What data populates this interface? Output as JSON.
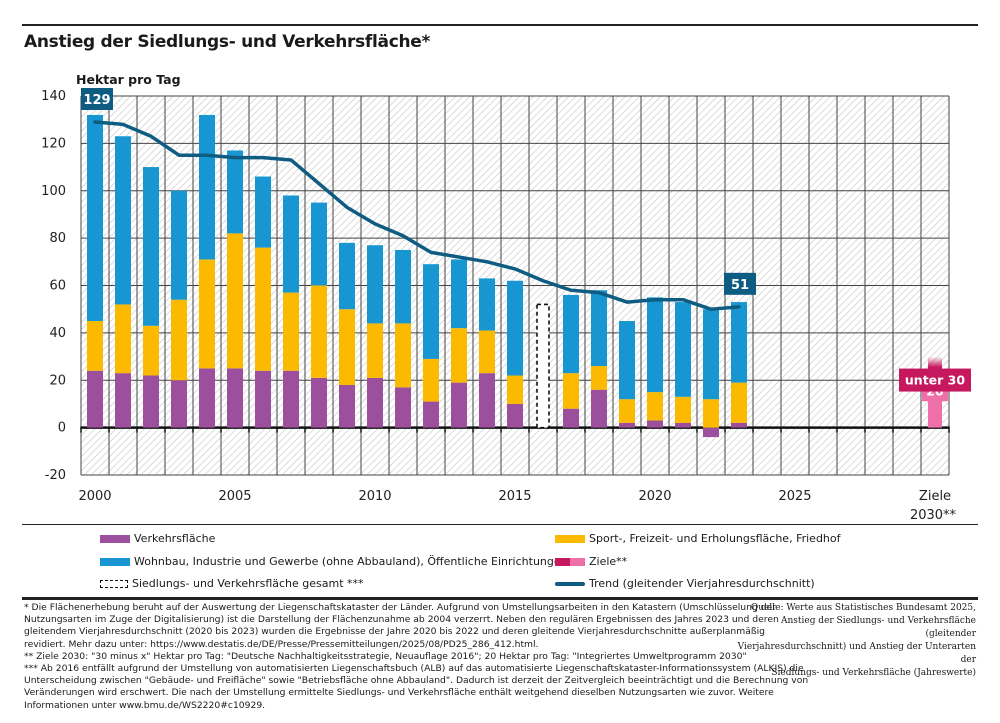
{
  "title": "Anstieg der Siedlungs- und Verkehrsfläche*",
  "chart_data": {
    "type": "bar",
    "stacked": true,
    "title": "Anstieg der Siedlungs- und Verkehrsfläche*",
    "ylabel": "Hektar pro Tag",
    "xlabel": "",
    "ylim": [
      -20,
      140
    ],
    "yticks": [
      -20,
      0,
      20,
      40,
      60,
      80,
      100,
      120,
      140
    ],
    "grid": true,
    "categories": [
      "2000",
      "2001",
      "2002",
      "2003",
      "2004",
      "2005",
      "2006",
      "2007",
      "2008",
      "2009",
      "2010",
      "2011",
      "2012",
      "2013",
      "2014",
      "2015",
      "2016",
      "2017",
      "2018",
      "2019",
      "2020",
      "2021",
      "2022",
      "2023",
      "2024",
      "2025",
      "2026",
      "2027",
      "2028",
      "2029",
      "Ziele 2030**"
    ],
    "xtick_labels": [
      {
        "index": 0,
        "label": "2000"
      },
      {
        "index": 5,
        "label": "2005"
      },
      {
        "index": 10,
        "label": "2010"
      },
      {
        "index": 15,
        "label": "2015"
      },
      {
        "index": 20,
        "label": "2020"
      },
      {
        "index": 25,
        "label": "2025"
      },
      {
        "index": 30,
        "label": "Ziele",
        "label2": "2030**"
      }
    ],
    "series": [
      {
        "name": "Verkehrsfläche",
        "color": "#9c4f9c",
        "values": [
          24,
          23,
          22,
          20,
          25,
          25,
          24,
          24,
          21,
          18,
          21,
          17,
          11,
          19,
          23,
          10,
          null,
          8,
          16,
          2,
          3,
          2,
          -4,
          2
        ]
      },
      {
        "name": "Sport-, Freizeit- und Erholungsfläche, Friedhof",
        "color": "#fbb900",
        "values": [
          21,
          29,
          21,
          34,
          46,
          57,
          52,
          33,
          39,
          32,
          23,
          27,
          18,
          23,
          18,
          12,
          null,
          15,
          10,
          10,
          12,
          11,
          12,
          17
        ]
      },
      {
        "name": "Wohnbau, Industrie und Gewerbe (ohne Abbauland), Öffentliche Einrichtungen",
        "color": "#1796d2",
        "values": [
          87,
          71,
          67,
          46,
          61,
          35,
          30,
          41,
          35,
          28,
          33,
          31,
          40,
          29,
          22,
          40,
          null,
          33,
          32,
          33,
          40,
          40,
          38,
          34
        ]
      }
    ],
    "totals_dashed": {
      "name": "Siedlungs- und Verkehrsfläche gesamt ***",
      "index": 16,
      "value": 52
    },
    "trend": {
      "name": "Trend (gleitender Vierjahresdurchschnitt)",
      "color": "#0f5c82",
      "values": [
        129,
        128,
        123,
        115,
        115,
        114,
        114,
        113,
        103,
        93,
        86,
        81,
        74,
        72,
        70,
        67,
        62,
        58,
        57,
        53,
        54,
        54,
        50,
        51
      ]
    },
    "annotations": [
      {
        "label": "129",
        "index": 0,
        "value": 129
      },
      {
        "label": "51",
        "index": 23,
        "value": 51
      }
    ],
    "targets": {
      "name": "Ziele**",
      "index": 30,
      "light_value": 20,
      "dark_value": 30,
      "light_label": "20",
      "dark_label": "unter 30",
      "colors": {
        "dark": "#c6185f",
        "light": "#ef70a9"
      }
    }
  },
  "legend": [
    {
      "label": "Verkehrsfläche",
      "type": "bar",
      "color": "#9c4f9c"
    },
    {
      "label": "Sport-, Freizeit- und Erholungsfläche, Friedhof",
      "type": "bar",
      "color": "#fbb900"
    },
    {
      "label": "Wohnbau, Industrie und Gewerbe (ohne Abbauland), Öffentliche Einrichtungen",
      "type": "bar",
      "color": "#1796d2"
    },
    {
      "label": "Ziele**",
      "type": "target",
      "color": "#c6185f",
      "color2": "#ef70a9"
    },
    {
      "label": "Siedlungs- und Verkehrsfläche gesamt ***",
      "type": "dashed"
    },
    {
      "label": "Trend (gleitender Vierjahresdurchschnitt)",
      "type": "line",
      "color": "#0f5c82"
    }
  ],
  "footnotes": [
    "* Die Flächenerhebung beruht auf der Auswertung der Liegenschaftskataster der Länder. Aufgrund von Umstellungsarbeiten in den Katastern (Umschlüsselung der",
    "Nutzungsarten im Zuge der Digitalisierung) ist die Darstellung der Flächenzunahme ab 2004 verzerrt. Neben den regulären Ergebnissen des Jahres 2023 und deren",
    "gleitendem Vierjahresdurchschnitt (2020 bis 2023) wurden die Ergebnisse der Jahre 2020 bis 2022 und deren gleitende Vierjahresdurchschnitte außerplanmäßig",
    "revidiert. Mehr dazu unter: https://www.destatis.de/DE/Presse/Pressemitteilungen/2025/08/PD25_286_412.html.",
    "** Ziele 2030: \"30 minus x\" Hektar pro Tag: \"Deutsche Nachhaltigkeitsstrategie, Neuauflage 2016\"; 20 Hektar pro Tag: \"Integriertes Umweltprogramm 2030\"",
    "*** Ab 2016 entfällt aufgrund der Umstellung von automatisierten Liegenschaftsbuch (ALB) auf das automatisierte Liegenschaftskataster-Informationssystem (ALKIS) die",
    "Unterscheidung zwischen \"Gebäude- und Freifläche\" sowie \"Betriebsfläche ohne Abbauland\". Dadurch ist derzeit der Zeitvergleich beeinträchtigt und die Berechnung von",
    "Veränderungen wird erschwert. Die nach der Umstellung ermittelte Siedlungs- und Verkehrsfläche enthält weitgehend dieselben Nutzungsarten wie zuvor. Weitere",
    "Informationen unter www.bmu.de/WS2220#c10929."
  ],
  "source": [
    "Quelle: Werte aus Statistisches Bundesamt 2025,",
    "Anstieg der Siedlungs- und Verkehrsfläche (gleitender",
    "Vierjahresdurchschnitt) und Anstieg der Unterarten der",
    "Siedlungs- und Verkehrsfläche (Jahreswerte)"
  ]
}
